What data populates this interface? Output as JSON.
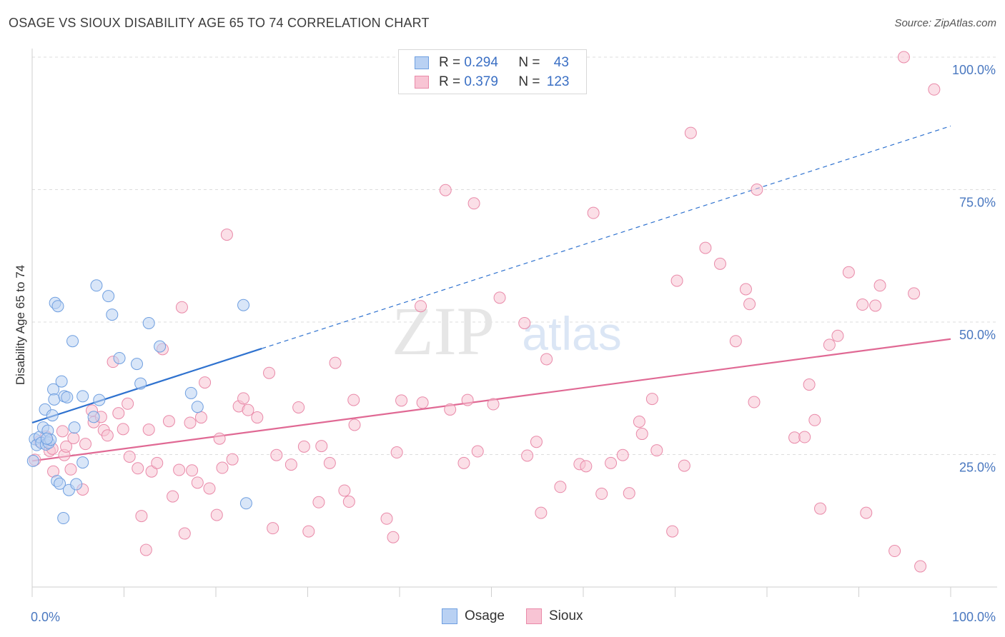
{
  "title": "OSAGE VS SIOUX DISABILITY AGE 65 TO 74 CORRELATION CHART",
  "source": "Source: ZipAtlas.com",
  "watermark_zip": "ZIP",
  "watermark_atlas": "atlas",
  "colors": {
    "osage_fill": "#b9d1f3",
    "osage_stroke": "#6f9fe0",
    "osage_line": "#2f72cf",
    "sioux_fill": "#f8c4d4",
    "sioux_stroke": "#e98aa9",
    "sioux_line": "#e06994",
    "axis_text": "#4a78c0",
    "grid": "#dddddd"
  },
  "legend": {
    "osage": {
      "r_label": "R = ",
      "r_value": "0.294",
      "n_label": "N = ",
      "n_value": "43"
    },
    "sioux": {
      "r_label": "R = ",
      "r_value": "0.379",
      "n_label": "N = ",
      "n_value": "123"
    }
  },
  "bottom_legend": {
    "osage": "Osage",
    "sioux": "Sioux"
  },
  "chart_data": {
    "type": "scatter",
    "title": "OSAGE VS SIOUX DISABILITY AGE 65 TO 74 CORRELATION CHART",
    "xlabel": "",
    "ylabel": "Disability Age 65 to 74",
    "xlim": [
      0,
      100
    ],
    "ylim": [
      0,
      100
    ],
    "x_tick_labels": [
      "0.0%",
      "100.0%"
    ],
    "y_ticks": [
      25,
      50,
      75,
      100
    ],
    "y_tick_labels": [
      "25.0%",
      "50.0%",
      "75.0%",
      "100.0%"
    ],
    "grid": true,
    "series": [
      {
        "name": "Osage",
        "points": [
          [
            0.3,
            27.9
          ],
          [
            0.5,
            26.8
          ],
          [
            0.8,
            28.3
          ],
          [
            1.0,
            27.2
          ],
          [
            1.2,
            30.1
          ],
          [
            1.4,
            33.5
          ],
          [
            1.5,
            26.9
          ],
          [
            1.7,
            29.5
          ],
          [
            1.8,
            27.2
          ],
          [
            2.0,
            27.8
          ],
          [
            2.2,
            32.4
          ],
          [
            2.3,
            37.3
          ],
          [
            2.4,
            35.4
          ],
          [
            2.5,
            53.6
          ],
          [
            2.7,
            20.0
          ],
          [
            2.8,
            53.0
          ],
          [
            3.0,
            19.5
          ],
          [
            3.2,
            38.8
          ],
          [
            3.4,
            13.0
          ],
          [
            3.5,
            36.0
          ],
          [
            3.8,
            35.8
          ],
          [
            4.0,
            18.3
          ],
          [
            4.4,
            46.4
          ],
          [
            4.6,
            30.1
          ],
          [
            4.8,
            19.4
          ],
          [
            5.5,
            36.0
          ],
          [
            5.5,
            23.5
          ],
          [
            7.0,
            56.9
          ],
          [
            7.3,
            35.3
          ],
          [
            8.3,
            54.9
          ],
          [
            8.7,
            51.4
          ],
          [
            9.5,
            43.2
          ],
          [
            11.4,
            42.1
          ],
          [
            11.8,
            38.4
          ],
          [
            12.7,
            49.8
          ],
          [
            13.9,
            45.4
          ],
          [
            17.3,
            36.6
          ],
          [
            18.0,
            34.0
          ],
          [
            23.0,
            53.2
          ],
          [
            23.3,
            15.8
          ],
          [
            0.1,
            23.8
          ],
          [
            1.6,
            28.0
          ],
          [
            6.7,
            32.1
          ]
        ],
        "trend": {
          "solid": [
            [
              0,
              31.0
            ],
            [
              25,
              45.0
            ]
          ],
          "dashed": [
            [
              25,
              45.0
            ],
            [
              100,
              87.0
            ]
          ]
        }
      },
      {
        "name": "Sioux",
        "points": [
          [
            0.3,
            24.0
          ],
          [
            0.8,
            27.5
          ],
          [
            1.5,
            28.4
          ],
          [
            1.9,
            25.7
          ],
          [
            2.2,
            26.1
          ],
          [
            2.3,
            21.8
          ],
          [
            3.3,
            29.4
          ],
          [
            3.5,
            24.9
          ],
          [
            3.7,
            26.5
          ],
          [
            4.2,
            22.2
          ],
          [
            4.5,
            28.1
          ],
          [
            5.5,
            18.4
          ],
          [
            5.8,
            27.0
          ],
          [
            6.5,
            33.3
          ],
          [
            6.7,
            31.1
          ],
          [
            7.5,
            32.1
          ],
          [
            7.8,
            29.6
          ],
          [
            8.2,
            28.6
          ],
          [
            8.8,
            42.5
          ],
          [
            9.4,
            32.8
          ],
          [
            9.9,
            29.8
          ],
          [
            10.4,
            34.6
          ],
          [
            10.6,
            24.6
          ],
          [
            11.5,
            22.4
          ],
          [
            11.9,
            13.4
          ],
          [
            12.4,
            7.0
          ],
          [
            12.7,
            29.7
          ],
          [
            13.0,
            21.8
          ],
          [
            13.6,
            23.4
          ],
          [
            14.2,
            44.9
          ],
          [
            14.9,
            31.3
          ],
          [
            15.3,
            17.1
          ],
          [
            16.0,
            22.1
          ],
          [
            16.3,
            52.8
          ],
          [
            16.6,
            10.1
          ],
          [
            17.2,
            31.0
          ],
          [
            17.4,
            22.0
          ],
          [
            18.0,
            19.7
          ],
          [
            18.4,
            32.0
          ],
          [
            18.8,
            38.6
          ],
          [
            19.3,
            18.6
          ],
          [
            20.1,
            13.6
          ],
          [
            20.4,
            28.0
          ],
          [
            20.7,
            22.5
          ],
          [
            21.2,
            66.5
          ],
          [
            21.8,
            24.1
          ],
          [
            22.5,
            34.1
          ],
          [
            23.0,
            35.6
          ],
          [
            23.5,
            33.4
          ],
          [
            24.5,
            32.0
          ],
          [
            25.8,
            40.4
          ],
          [
            26.2,
            11.1
          ],
          [
            26.6,
            24.9
          ],
          [
            28.2,
            23.1
          ],
          [
            29.0,
            33.9
          ],
          [
            29.6,
            26.5
          ],
          [
            30.1,
            10.5
          ],
          [
            31.2,
            16.0
          ],
          [
            31.5,
            26.6
          ],
          [
            32.4,
            23.4
          ],
          [
            33.0,
            42.3
          ],
          [
            34.0,
            18.2
          ],
          [
            34.5,
            16.1
          ],
          [
            35.0,
            35.3
          ],
          [
            35.1,
            30.6
          ],
          [
            38.6,
            12.9
          ],
          [
            39.3,
            9.4
          ],
          [
            39.7,
            25.4
          ],
          [
            40.2,
            35.2
          ],
          [
            42.3,
            53.0
          ],
          [
            42.5,
            34.8
          ],
          [
            45.0,
            74.9
          ],
          [
            45.5,
            33.5
          ],
          [
            47.0,
            23.4
          ],
          [
            47.4,
            35.3
          ],
          [
            48.1,
            72.4
          ],
          [
            48.5,
            25.6
          ],
          [
            50.2,
            34.5
          ],
          [
            50.9,
            54.6
          ],
          [
            53.6,
            49.8
          ],
          [
            53.9,
            24.8
          ],
          [
            54.9,
            27.4
          ],
          [
            55.4,
            14.0
          ],
          [
            56.0,
            43.0
          ],
          [
            57.5,
            18.9
          ],
          [
            59.6,
            23.2
          ],
          [
            60.3,
            22.8
          ],
          [
            61.1,
            70.6
          ],
          [
            62.0,
            17.6
          ],
          [
            63.0,
            23.4
          ],
          [
            64.3,
            24.9
          ],
          [
            65.0,
            17.7
          ],
          [
            66.1,
            31.2
          ],
          [
            66.4,
            28.9
          ],
          [
            67.5,
            35.5
          ],
          [
            68.0,
            25.8
          ],
          [
            69.7,
            10.5
          ],
          [
            70.2,
            57.8
          ],
          [
            71.0,
            22.9
          ],
          [
            71.7,
            85.7
          ],
          [
            73.3,
            64.0
          ],
          [
            74.9,
            61.0
          ],
          [
            76.6,
            46.4
          ],
          [
            77.7,
            56.2
          ],
          [
            78.1,
            53.4
          ],
          [
            78.6,
            34.9
          ],
          [
            78.9,
            75.0
          ],
          [
            83.0,
            28.2
          ],
          [
            84.1,
            28.3
          ],
          [
            84.6,
            38.2
          ],
          [
            85.2,
            31.5
          ],
          [
            85.8,
            14.8
          ],
          [
            86.8,
            45.7
          ],
          [
            87.7,
            47.4
          ],
          [
            88.9,
            59.4
          ],
          [
            90.4,
            53.3
          ],
          [
            90.8,
            14.0
          ],
          [
            91.8,
            53.1
          ],
          [
            92.3,
            56.9
          ],
          [
            93.9,
            6.8
          ],
          [
            94.9,
            100.0
          ],
          [
            96.0,
            55.4
          ],
          [
            96.7,
            3.9
          ],
          [
            98.2,
            93.9
          ]
        ],
        "trend": {
          "solid": [
            [
              0,
              23.8
            ],
            [
              100,
              46.8
            ]
          ]
        }
      }
    ]
  }
}
